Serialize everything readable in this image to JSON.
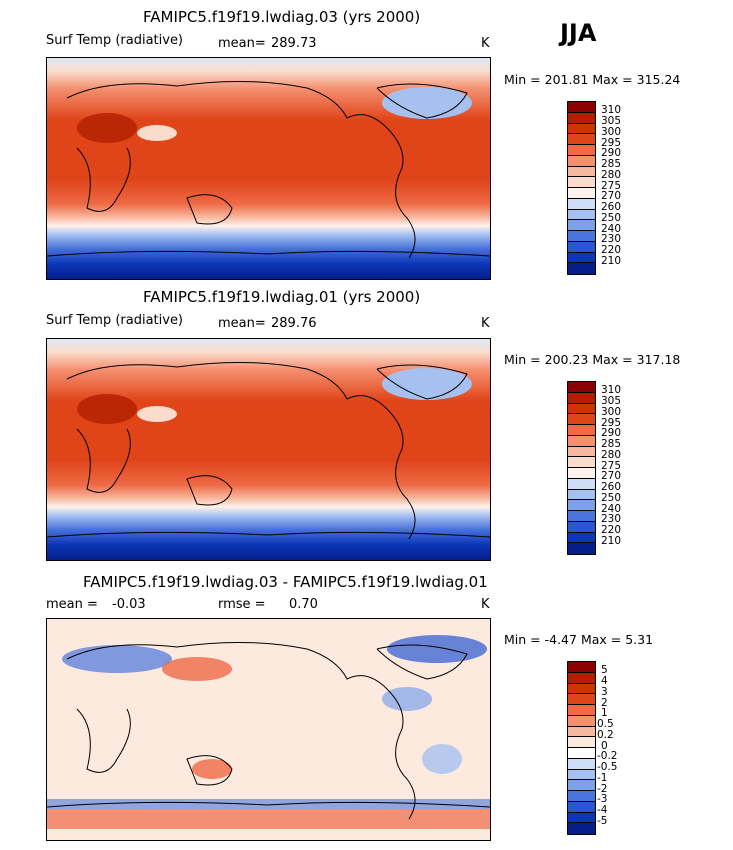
{
  "season": "JJA",
  "colors": {
    "abs_scale": [
      "#8b0000",
      "#b21e00",
      "#cf3300",
      "#e0451a",
      "#ee6a45",
      "#f48f6f",
      "#f8b79f",
      "#fbdccc",
      "#fef3ec",
      "#cfdef6",
      "#a6c1f0",
      "#7ca2e8",
      "#4a75db",
      "#2757d2",
      "#0d37b8",
      "#061e8c"
    ],
    "diff_scale": [
      "#8b0000",
      "#b21e00",
      "#cf3300",
      "#e0451a",
      "#ee6a45",
      "#f48f6f",
      "#f8b79f",
      "#fdeadf",
      "#ffffff",
      "#cfdef6",
      "#a6c1f0",
      "#7ca2e8",
      "#4a75db",
      "#2757d2",
      "#0d37b8",
      "#061e8c"
    ],
    "land": "#000000"
  },
  "panels": [
    {
      "title": "FAMIPC5.f19f19.lwdiag.03 (yrs 2000)",
      "variable": "Surf Temp (radiative)",
      "mean_label": "mean=",
      "mean_value": "289.73",
      "units": "K",
      "min_label": "Min =",
      "min_value": "201.81",
      "max_label": "Max =",
      "max_value": "315.24",
      "levels": [
        "310",
        "305",
        "300",
        "295",
        "290",
        "285",
        "280",
        "275",
        "270",
        "260",
        "250",
        "240",
        "230",
        "220",
        "210"
      ]
    },
    {
      "title": "FAMIPC5.f19f19.lwdiag.01 (yrs 2000)",
      "variable": "Surf Temp (radiative)",
      "mean_label": "mean=",
      "mean_value": "289.76",
      "units": "K",
      "min_label": "Min =",
      "min_value": "200.23",
      "max_label": "Max =",
      "max_value": "317.18",
      "levels": [
        "310",
        "305",
        "300",
        "295",
        "290",
        "285",
        "280",
        "275",
        "270",
        "260",
        "250",
        "240",
        "230",
        "220",
        "210"
      ]
    },
    {
      "title": "FAMIPC5.f19f19.lwdiag.03 - FAMIPC5.f19f19.lwdiag.01",
      "mean_label": "mean =",
      "mean_value": "-0.03",
      "rmse_label": "rmse =",
      "rmse_value": "0.70",
      "units": "K",
      "min_label": "Min =",
      "min_value": "-4.47",
      "max_label": "Max =",
      "max_value": "5.31",
      "levels": [
        "5",
        "4",
        "3",
        "2",
        "1",
        "0.5",
        "0.2",
        "0",
        "-0.2",
        "-0.5",
        "-1",
        "-2",
        "-3",
        "-4",
        "-5"
      ]
    }
  ],
  "chart_data": [
    {
      "type": "heatmap",
      "title": "FAMIPC5.f19f19.lwdiag.03 (yrs 2000)",
      "variable": "Surf Temp (radiative)",
      "units": "K",
      "mean": 289.73,
      "min": 201.81,
      "max": 315.24,
      "contour_levels": [
        210,
        220,
        230,
        240,
        250,
        260,
        270,
        275,
        280,
        285,
        290,
        295,
        300,
        305,
        310
      ]
    },
    {
      "type": "heatmap",
      "title": "FAMIPC5.f19f19.lwdiag.01 (yrs 2000)",
      "variable": "Surf Temp (radiative)",
      "units": "K",
      "mean": 289.76,
      "min": 200.23,
      "max": 317.18,
      "contour_levels": [
        210,
        220,
        230,
        240,
        250,
        260,
        270,
        275,
        280,
        285,
        290,
        295,
        300,
        305,
        310
      ]
    },
    {
      "type": "heatmap",
      "title": "FAMIPC5.f19f19.lwdiag.03 - FAMIPC5.f19f19.lwdiag.01",
      "units": "K",
      "mean": -0.03,
      "rmse": 0.7,
      "min": -4.47,
      "max": 5.31,
      "contour_levels": [
        -5,
        -4,
        -3,
        -2,
        -1,
        -0.5,
        -0.2,
        0,
        0.2,
        0.5,
        1,
        2,
        3,
        4,
        5
      ]
    }
  ]
}
